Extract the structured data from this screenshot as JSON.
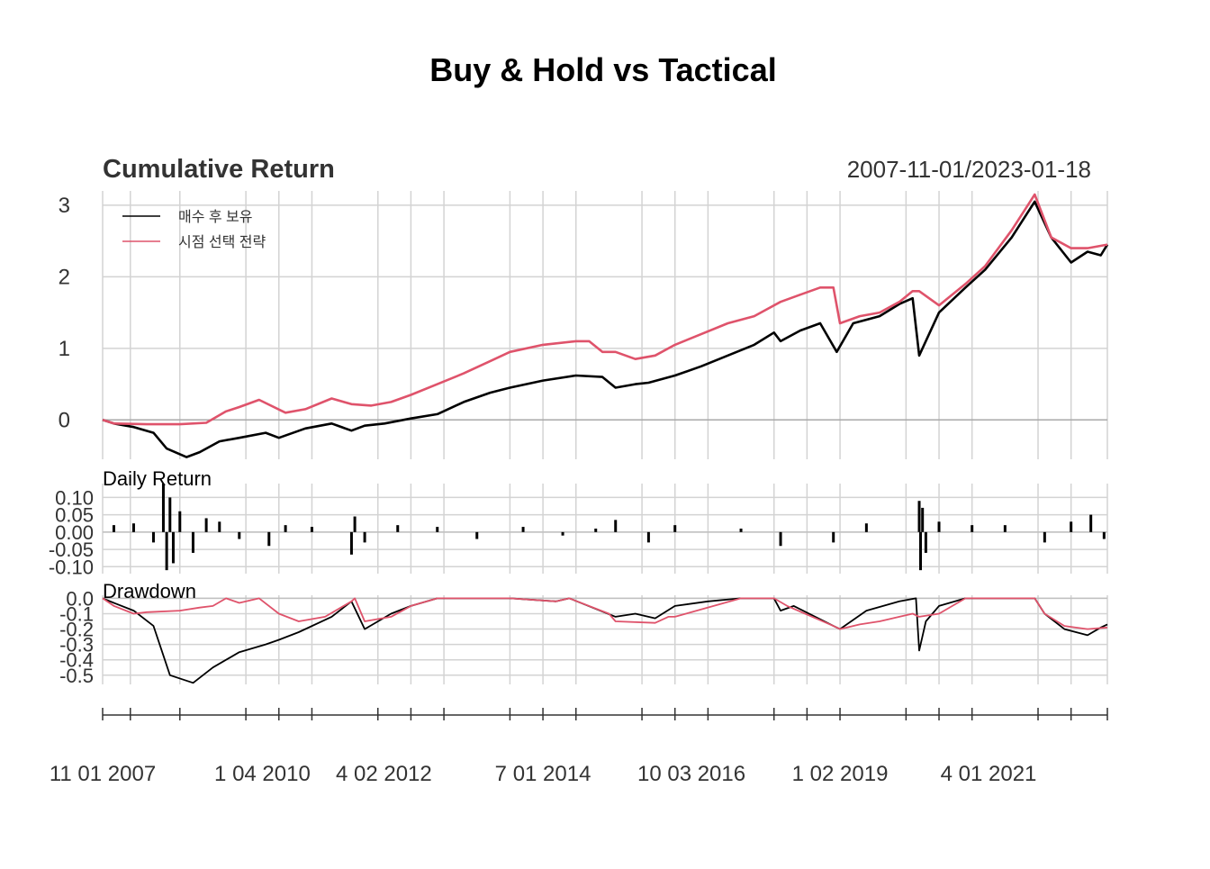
{
  "title": "Buy & Hold vs Tactical",
  "colors": {
    "buy_hold": "#000000",
    "tactical": "#DF536B",
    "grid": "#D3D3D3",
    "zero": "#A9A9A9",
    "text": "#333333"
  },
  "chart_data": {
    "type": "line",
    "date_range": "2007-11-01/2023-01-18",
    "x_ticks": [
      "11 01 2007",
      "1 04 2010",
      "4 02 2012",
      "7 01 2014",
      "10 03 2016",
      "1 02 2019",
      "4 01 2021"
    ],
    "legend": {
      "position": "top-left",
      "entries": [
        "매수 후 보유",
        "시점 선택 전략"
      ]
    },
    "panels": [
      {
        "title": "Cumulative Return",
        "ylim": [
          -0.55,
          3.2
        ],
        "y_ticks": [
          "0",
          "1",
          "2",
          "3"
        ],
        "series": [
          {
            "name": "매수 후 보유",
            "x": [
              2007.83,
              2008.0,
              2008.3,
              2008.6,
              2008.8,
              2009.1,
              2009.3,
              2009.6,
              2009.9,
              2010.3,
              2010.5,
              2010.9,
              2011.3,
              2011.6,
              2011.8,
              2012.1,
              2012.5,
              2012.9,
              2013.3,
              2013.7,
              2014.0,
              2014.5,
              2015.0,
              2015.4,
              2015.6,
              2015.9,
              2016.1,
              2016.5,
              2016.9,
              2017.3,
              2017.7,
              2018.0,
              2018.1,
              2018.4,
              2018.7,
              2018.95,
              2019.2,
              2019.6,
              2019.9,
              2020.1,
              2020.2,
              2020.5,
              2020.9,
              2021.2,
              2021.6,
              2021.95,
              2022.2,
              2022.5,
              2022.75,
              2022.95,
              2023.05
            ],
            "values": [
              0,
              -0.05,
              -0.1,
              -0.18,
              -0.4,
              -0.52,
              -0.45,
              -0.3,
              -0.25,
              -0.18,
              -0.25,
              -0.12,
              -0.05,
              -0.15,
              -0.08,
              -0.05,
              0.02,
              0.08,
              0.25,
              0.38,
              0.45,
              0.55,
              0.62,
              0.6,
              0.45,
              0.5,
              0.52,
              0.62,
              0.75,
              0.9,
              1.05,
              1.22,
              1.1,
              1.25,
              1.35,
              0.95,
              1.35,
              1.45,
              1.62,
              1.7,
              0.9,
              1.5,
              1.85,
              2.1,
              2.55,
              3.05,
              2.55,
              2.2,
              2.35,
              2.3,
              2.45
            ]
          },
          {
            "name": "시점 선택 전략",
            "x": [
              2007.83,
              2008.0,
              2008.5,
              2009.0,
              2009.4,
              2009.7,
              2009.9,
              2010.2,
              2010.6,
              2010.9,
              2011.3,
              2011.6,
              2011.9,
              2012.2,
              2012.5,
              2012.9,
              2013.3,
              2013.7,
              2014.0,
              2014.5,
              2015.0,
              2015.2,
              2015.4,
              2015.6,
              2015.9,
              2016.2,
              2016.5,
              2016.9,
              2017.3,
              2017.7,
              2017.9,
              2018.1,
              2018.4,
              2018.7,
              2018.9,
              2019.0,
              2019.3,
              2019.6,
              2019.9,
              2020.1,
              2020.2,
              2020.5,
              2020.9,
              2021.2,
              2021.6,
              2021.95,
              2022.2,
              2022.5,
              2022.75,
              2023.05
            ],
            "values": [
              0,
              -0.05,
              -0.06,
              -0.06,
              -0.04,
              0.12,
              0.18,
              0.28,
              0.1,
              0.15,
              0.3,
              0.22,
              0.2,
              0.25,
              0.35,
              0.5,
              0.65,
              0.82,
              0.95,
              1.05,
              1.1,
              1.1,
              0.95,
              0.95,
              0.85,
              0.9,
              1.05,
              1.2,
              1.35,
              1.45,
              1.55,
              1.65,
              1.75,
              1.85,
              1.85,
              1.35,
              1.45,
              1.5,
              1.65,
              1.8,
              1.8,
              1.6,
              1.9,
              2.15,
              2.65,
              3.15,
              2.55,
              2.4,
              2.4,
              2.45
            ]
          }
        ]
      },
      {
        "title": "Daily Return",
        "ylim": [
          -0.12,
          0.14
        ],
        "y_ticks": [
          "0.10",
          "0.05",
          "0.00",
          "-0.05",
          "-0.10"
        ],
        "series": [
          {
            "name": "",
            "x": [
              2008.0,
              2008.3,
              2008.6,
              2008.75,
              2008.8,
              2008.85,
              2008.9,
              2009.0,
              2009.2,
              2009.4,
              2009.6,
              2009.9,
              2010.35,
              2010.6,
              2011.0,
              2011.6,
              2011.65,
              2011.8,
              2012.3,
              2012.9,
              2013.5,
              2014.2,
              2014.8,
              2015.3,
              2015.6,
              2016.1,
              2016.5,
              2017.5,
              2018.1,
              2018.9,
              2019.4,
              2020.2,
              2020.22,
              2020.25,
              2020.3,
              2020.5,
              2021.0,
              2021.5,
              2022.1,
              2022.5,
              2022.8,
              2023.0
            ],
            "values": [
              0.02,
              0.025,
              -0.03,
              0.14,
              -0.11,
              0.1,
              -0.09,
              0.06,
              -0.06,
              0.04,
              0.03,
              -0.02,
              -0.04,
              0.02,
              0.015,
              -0.065,
              0.045,
              -0.03,
              0.02,
              0.015,
              -0.02,
              0.015,
              -0.01,
              0.01,
              0.035,
              -0.03,
              0.02,
              0.01,
              -0.04,
              -0.03,
              0.025,
              0.09,
              -0.11,
              0.07,
              -0.06,
              0.03,
              0.02,
              0.02,
              -0.03,
              0.03,
              0.05,
              -0.02
            ]
          }
        ]
      },
      {
        "title": "Drawdown",
        "ylim": [
          -0.56,
          0.02
        ],
        "y_ticks": [
          "0.0",
          "-0.1",
          "-0.2",
          "-0.3",
          "-0.4",
          "-0.5"
        ],
        "series": [
          {
            "name": "매수 후 보유",
            "x": [
              2007.83,
              2008.0,
              2008.3,
              2008.6,
              2008.85,
              2009.2,
              2009.5,
              2009.9,
              2010.3,
              2010.5,
              2010.8,
              2011.3,
              2011.6,
              2011.8,
              2012.2,
              2012.5,
              2012.9,
              2014.0,
              2014.7,
              2014.9,
              2015.6,
              2015.9,
              2016.2,
              2016.5,
              2017.0,
              2017.5,
              2018.0,
              2018.1,
              2018.3,
              2018.9,
              2019.0,
              2019.4,
              2019.9,
              2020.15,
              2020.2,
              2020.3,
              2020.5,
              2020.9,
              2021.5,
              2021.95,
              2022.1,
              2022.4,
              2022.75,
              2022.95,
              2023.05
            ],
            "values": [
              0,
              -0.03,
              -0.08,
              -0.18,
              -0.5,
              -0.55,
              -0.45,
              -0.35,
              -0.3,
              -0.27,
              -0.22,
              -0.12,
              -0.02,
              -0.2,
              -0.1,
              -0.05,
              0,
              0,
              -0.02,
              0,
              -0.12,
              -0.1,
              -0.13,
              -0.05,
              -0.02,
              0,
              0,
              -0.08,
              -0.05,
              -0.18,
              -0.2,
              -0.08,
              -0.02,
              0,
              -0.34,
              -0.15,
              -0.05,
              0,
              0,
              0,
              -0.1,
              -0.2,
              -0.24,
              -0.19,
              -0.17
            ]
          },
          {
            "name": "시점 선택 전략",
            "x": [
              2007.83,
              2008.0,
              2008.3,
              2008.5,
              2009.0,
              2009.3,
              2009.5,
              2009.7,
              2009.9,
              2010.2,
              2010.5,
              2010.8,
              2011.2,
              2011.6,
              2011.65,
              2011.8,
              2012.2,
              2012.5,
              2012.9,
              2014.0,
              2014.7,
              2014.9,
              2015.5,
              2015.6,
              2016.2,
              2016.4,
              2016.5,
              2017.5,
              2018.0,
              2018.2,
              2018.9,
              2019.0,
              2019.3,
              2019.6,
              2019.9,
              2020.1,
              2020.2,
              2020.5,
              2020.9,
              2021.5,
              2021.95,
              2022.1,
              2022.4,
              2022.75,
              2023.05
            ],
            "values": [
              0,
              -0.05,
              -0.1,
              -0.09,
              -0.08,
              -0.06,
              -0.05,
              0,
              -0.03,
              0,
              -0.1,
              -0.15,
              -0.12,
              -0.02,
              0,
              -0.15,
              -0.12,
              -0.05,
              0,
              0,
              -0.02,
              0,
              -0.1,
              -0.15,
              -0.16,
              -0.12,
              -0.12,
              0,
              0,
              -0.05,
              -0.18,
              -0.2,
              -0.17,
              -0.15,
              -0.12,
              -0.1,
              -0.12,
              -0.1,
              0,
              0,
              0,
              -0.1,
              -0.18,
              -0.2,
              -0.19
            ]
          }
        ]
      }
    ]
  }
}
